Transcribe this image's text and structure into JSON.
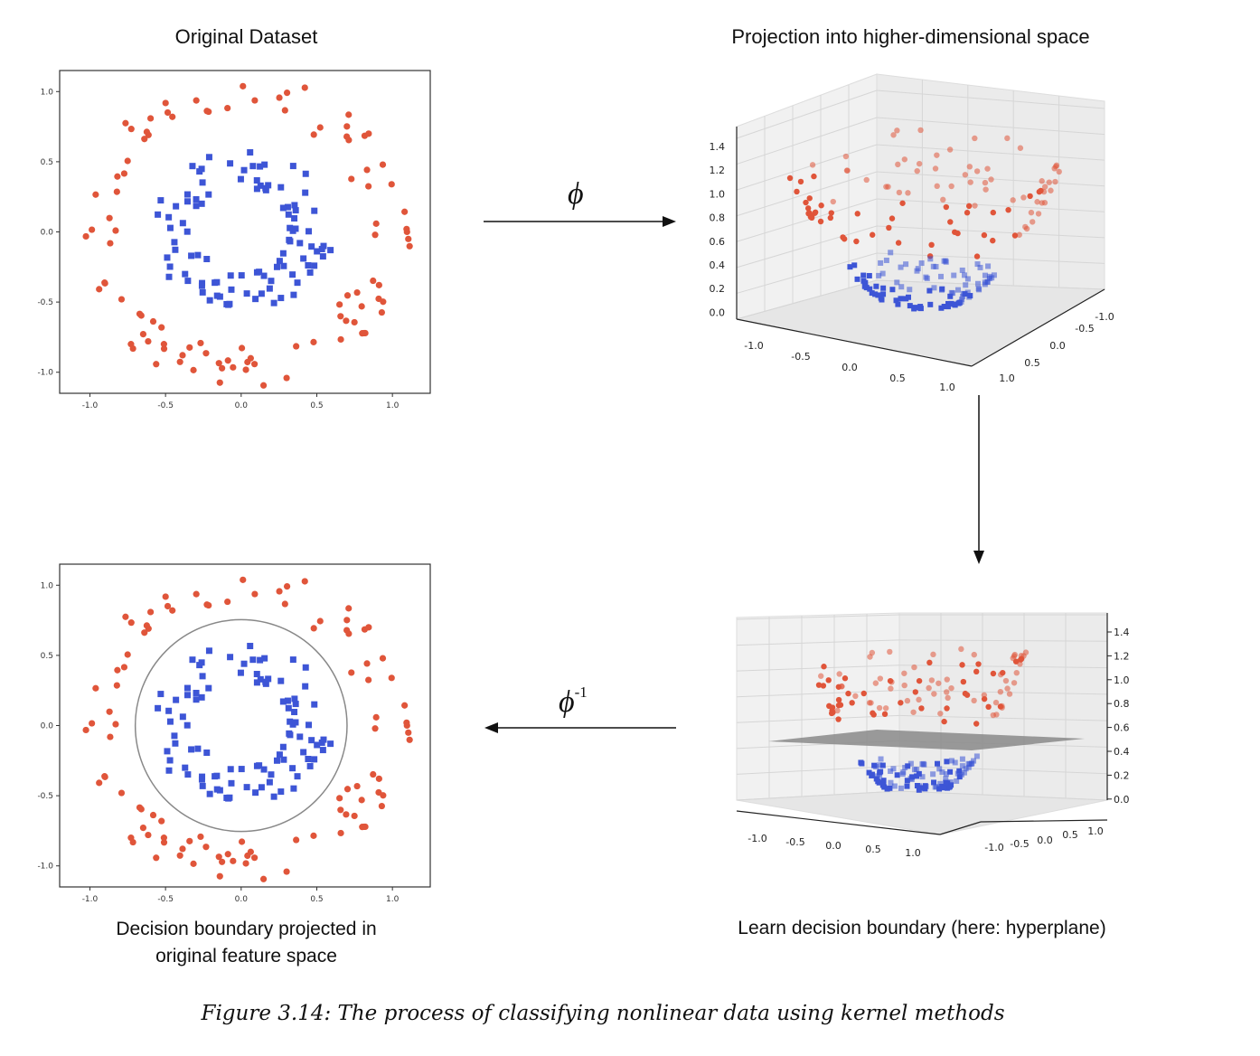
{
  "panels": {
    "top_left": {
      "title": "Original Dataset",
      "x_ticks": [
        "-1.0",
        "-0.5",
        "0.0",
        "0.5",
        "1.0"
      ],
      "y_ticks": [
        "1.0",
        "0.5",
        "0.0",
        "-0.5",
        "-1.0"
      ]
    },
    "top_right": {
      "title": "Projection into higher-dimensional space",
      "z_ticks": [
        "1.4",
        "1.2",
        "1.0",
        "0.8",
        "0.6",
        "0.4",
        "0.2",
        "0.0"
      ],
      "x_ticks": [
        "-1.0",
        "-0.5",
        "0.0",
        "0.5",
        "1.0"
      ],
      "y_ticks": [
        "-1.0",
        "-0.5",
        "0.0",
        "0.5",
        "1.0"
      ]
    },
    "bottom_right": {
      "label": "Learn decision boundary (here: hyperplane)",
      "z_ticks": [
        "1.4",
        "1.2",
        "1.0",
        "0.8",
        "0.6",
        "0.4",
        "0.2",
        "0.0"
      ],
      "x_ticks": [
        "-1.0",
        "-0.5",
        "0.0",
        "0.5",
        "1.0"
      ],
      "y_ticks": [
        "-1.0",
        "-0.5",
        "0.0",
        "0.5",
        "1.0"
      ]
    },
    "bottom_left": {
      "label_line1": "Decision boundary projected in",
      "label_line2": "original feature space",
      "x_ticks": [
        "-1.0",
        "-0.5",
        "0.0",
        "0.5",
        "1.0"
      ],
      "y_ticks": [
        "1.0",
        "0.5",
        "0.0",
        "-0.5",
        "-1.0"
      ]
    }
  },
  "arrows": {
    "forward_label": "ϕ",
    "inverse_label": "ϕ",
    "inverse_sup": "-1"
  },
  "caption": "Figure 3.14: The process of classifying nonlinear data using kernel methods",
  "colors": {
    "outer_class": "#e0553a",
    "inner_class": "#3d55d6",
    "boundary": "#888888",
    "hyperplane": "#8a8a8a"
  },
  "chart_data": [
    {
      "type": "scatter",
      "title": "Original Dataset",
      "xlim": [
        -1.2,
        1.25
      ],
      "ylim": [
        -1.15,
        1.15
      ],
      "series": [
        {
          "marker": "circle",
          "color": "#e0553a",
          "radius_range": [
            0.8,
            1.15
          ]
        },
        {
          "marker": "square",
          "color": "#3d55d6",
          "radius_range": [
            0.3,
            0.62
          ]
        }
      ]
    },
    {
      "type": "scatter",
      "title": "Decision boundary projected in original feature space",
      "xlim": [
        -1.2,
        1.25
      ],
      "ylim": [
        -1.15,
        1.15
      ],
      "decision_boundary": {
        "shape": "circle",
        "radius": 0.7
      },
      "series": [
        {
          "marker": "circle",
          "color": "#e0553a",
          "radius_range": [
            0.8,
            1.15
          ]
        },
        {
          "marker": "square",
          "color": "#3d55d6",
          "radius_range": [
            0.3,
            0.62
          ]
        }
      ]
    }
  ]
}
